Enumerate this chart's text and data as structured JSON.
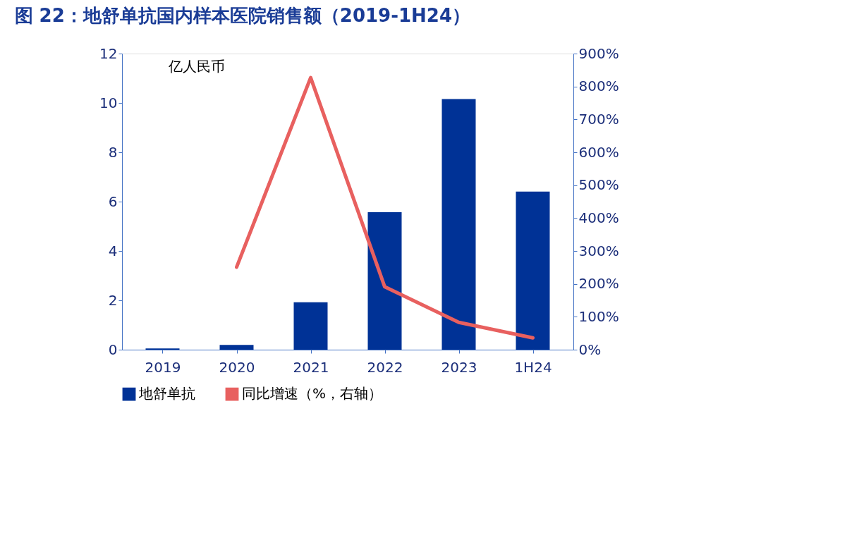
{
  "chart_data": {
    "type": "bar",
    "title": "图 22：地舒单抗国内样本医院销售额（2019-1H24）",
    "ylabel": "亿人民币",
    "categories": [
      "2019",
      "2020",
      "2021",
      "2022",
      "2023",
      "1H24"
    ],
    "series": [
      {
        "name": "地舒单抗",
        "color": "#003296",
        "values": [
          0.05,
          0.19,
          1.92,
          5.57,
          10.16,
          6.41
        ]
      },
      {
        "name": "同比增速（%，右轴）",
        "type": "line",
        "axis": "y2",
        "color": "#e8605f",
        "values": [
          null,
          251,
          827,
          191,
          83,
          36
        ]
      }
    ],
    "ylim": [
      0,
      12
    ],
    "yticks": [
      0,
      2,
      4,
      6,
      8,
      10,
      12
    ],
    "y2lim": [
      0,
      900
    ],
    "y2ticks": [
      {
        "value": 0,
        "label": "0%"
      },
      {
        "value": 100,
        "label": "100%"
      },
      {
        "value": 200,
        "label": "200%"
      },
      {
        "value": 300,
        "label": "300%"
      },
      {
        "value": 400,
        "label": "400%"
      },
      {
        "value": 500,
        "label": "500%"
      },
      {
        "value": 600,
        "label": "600%"
      },
      {
        "value": 700,
        "label": "700%"
      },
      {
        "value": 800,
        "label": "800%"
      },
      {
        "value": 900,
        "label": "900%"
      }
    ],
    "grid": false,
    "legend": "bottom"
  }
}
